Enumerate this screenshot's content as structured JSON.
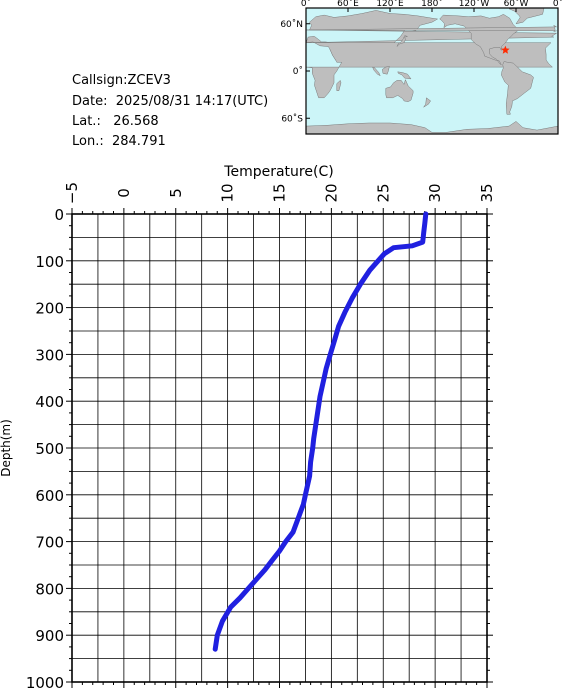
{
  "info": {
    "callsign": "Callsign:ZCEV3",
    "date": "Date:  2025/08/31 14:17(UTC)",
    "lat": "Lat.:   26.568",
    "lon": "Lon.:  284.791"
  },
  "map": {
    "top_labels": [
      "0˚",
      "60˚E",
      "120˚E",
      "180˚",
      "120˚W",
      "60˚W",
      "0˚"
    ],
    "left_labels": [
      "60˚N",
      "0˚",
      "60˚S"
    ],
    "ocean_color": "#ccf5f8",
    "land_color": "#bebebe",
    "marker_color": "#ff2a00",
    "marker": {
      "lon": 284.791,
      "lat": 26.568
    },
    "lon_range": [
      0,
      360
    ],
    "lat_range": [
      -80,
      80
    ]
  },
  "chart_data": {
    "type": "line",
    "title": "",
    "xlabel": "Temperature(C)",
    "ylabel": "Depth(m)",
    "xlim": [
      -5,
      35
    ],
    "ylim": [
      0,
      1000
    ],
    "y_inverted": true,
    "x_ticks": [
      "-5",
      "0",
      "5",
      "10",
      "15",
      "20",
      "25",
      "30",
      "35"
    ],
    "y_ticks": [
      "0",
      "100",
      "200",
      "300",
      "400",
      "500",
      "600",
      "700",
      "800",
      "900",
      "1000"
    ],
    "grid": true,
    "series": [
      {
        "color": "#2020e0",
        "x": [
          29.1,
          29.0,
          28.9,
          28.8,
          27.8,
          26.0,
          25.1,
          24.5,
          23.7,
          22.8,
          22.0,
          21.3,
          20.7,
          20.3,
          19.9,
          19.5,
          19.2,
          18.9,
          18.7,
          18.5,
          18.3,
          18.2,
          18.0,
          17.9,
          17.7,
          17.5,
          17.3,
          16.8,
          16.3,
          15.6,
          15.0,
          14.3,
          13.6,
          12.8,
          12.0,
          11.2,
          10.3,
          9.5,
          9.0,
          8.8
        ],
        "y": [
          0,
          20,
          40,
          60,
          68,
          72,
          85,
          100,
          120,
          150,
          180,
          210,
          240,
          270,
          300,
          330,
          360,
          390,
          420,
          450,
          480,
          500,
          530,
          560,
          580,
          600,
          620,
          650,
          680,
          700,
          720,
          740,
          760,
          780,
          800,
          820,
          840,
          870,
          900,
          930
        ]
      }
    ]
  }
}
